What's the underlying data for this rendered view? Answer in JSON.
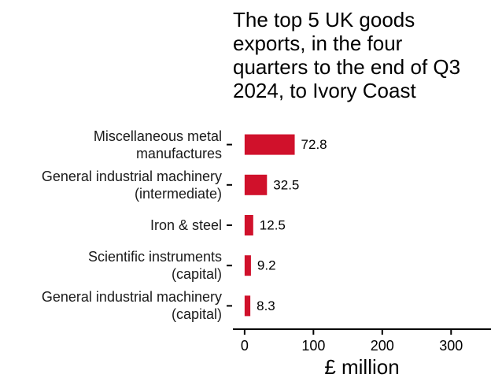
{
  "chart_data": {
    "type": "bar",
    "orientation": "horizontal",
    "title": "The top 5 UK goods exports, in the four\nquarters to the end of Q3\n2024, to Ivory Coast",
    "categories": [
      "Miscellaneous metal\nmanufactures",
      "General industrial machinery\n(intermediate)",
      "Iron & steel",
      "Scientific instruments\n(capital)",
      "General industrial machinery\n(capital)"
    ],
    "values": [
      72.8,
      32.5,
      12.5,
      9.2,
      8.3
    ],
    "color": "#d0112b",
    "x_label": "£ million",
    "xlim": [
      -17,
      358
    ],
    "xticks": [
      0,
      100,
      200,
      300
    ]
  }
}
